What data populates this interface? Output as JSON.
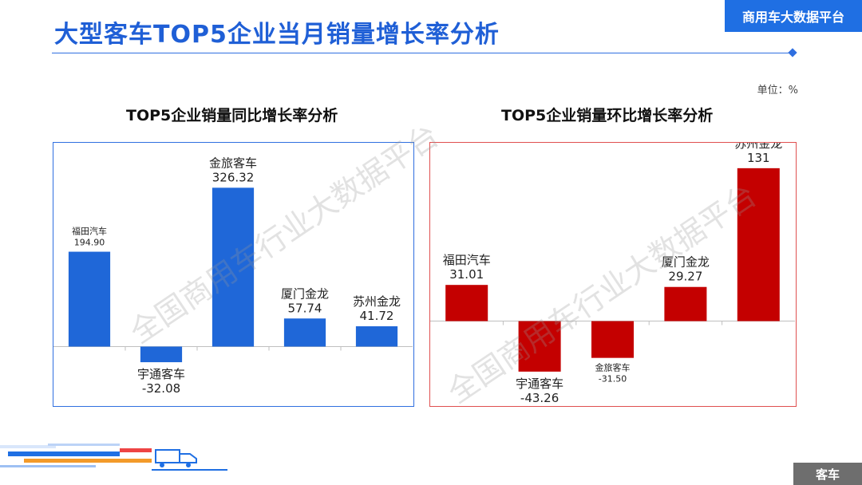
{
  "page_title": "大型客车TOP5企业当月销量增长率分析",
  "brand": "商用车大数据平台",
  "unit": "单位：%",
  "watermark": "全国商用车行业大数据平台",
  "footer_tag": "客车",
  "colors": {
    "blue": "#1f67d8",
    "red": "#c40000",
    "accent": "#1f5fd6"
  },
  "chart_data": [
    {
      "type": "bar",
      "title": "TOP5企业销量同比增长率分析",
      "categories": [
        "福田汽车",
        "宇通客车",
        "金旅客车",
        "厦门金龙",
        "苏州金龙"
      ],
      "values": [
        194.9,
        -32.08,
        326.32,
        57.74,
        41.72
      ],
      "labels": [
        "194.90",
        "-32.08",
        "326.32",
        "57.74",
        "41.72"
      ],
      "color": "#1f67d8",
      "ylim": [
        -50,
        340
      ],
      "grid": false,
      "legend": "none"
    },
    {
      "type": "bar",
      "title": "TOP5企业销量环比增长率分析",
      "categories": [
        "福田汽车",
        "宇通客车",
        "金旅客车",
        "厦门金龙",
        "苏州金龙"
      ],
      "values": [
        31.01,
        -43.26,
        -31.5,
        29.27,
        131
      ],
      "labels": [
        "31.01",
        "-43.26",
        "-31.50",
        "29.27",
        "131"
      ],
      "color": "#c40000",
      "ylim": [
        -70,
        135
      ],
      "grid": false,
      "legend": "none"
    }
  ]
}
